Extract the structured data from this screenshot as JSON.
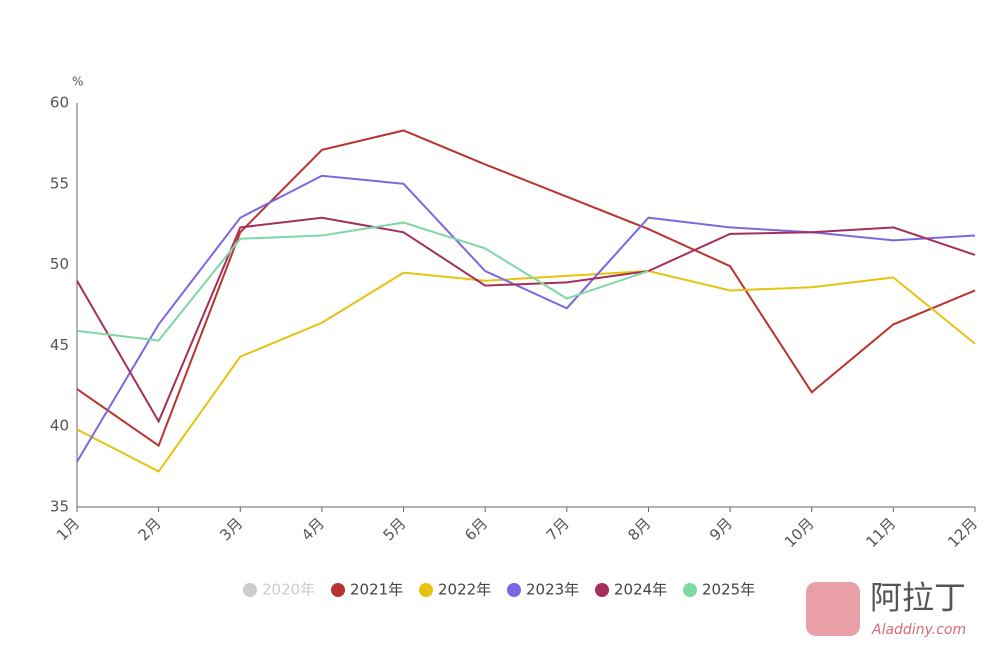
{
  "chart_data": {
    "type": "line",
    "y_unit": "%",
    "categories": [
      "1月",
      "2月",
      "3月",
      "4月",
      "5月",
      "6月",
      "7月",
      "8月",
      "9月",
      "10月",
      "11月",
      "12月"
    ],
    "ylim": [
      35,
      60
    ],
    "yticks": [
      35,
      40,
      45,
      50,
      55,
      60
    ],
    "grid": false,
    "legend": "bottom",
    "series": [
      {
        "name": "2020年",
        "color": "#cccccc",
        "hidden": true,
        "values": [
          null,
          null,
          null,
          null,
          null,
          null,
          null,
          null,
          null,
          null,
          null,
          null
        ]
      },
      {
        "name": "2021年",
        "color": "#b8352f",
        "values": [
          42.3,
          38.8,
          52.0,
          57.1,
          58.3,
          56.2,
          54.2,
          52.2,
          49.9,
          42.1,
          46.3,
          48.4
        ]
      },
      {
        "name": "2022年",
        "color": "#e6c30e",
        "values": [
          39.8,
          37.2,
          44.3,
          46.4,
          49.5,
          49.0,
          49.3,
          49.6,
          48.4,
          48.6,
          49.2,
          45.1
        ]
      },
      {
        "name": "2023年",
        "color": "#7b68e0",
        "values": [
          37.8,
          46.3,
          52.9,
          55.5,
          55.0,
          49.6,
          47.3,
          52.9,
          52.3,
          52.0,
          51.5,
          51.8
        ]
      },
      {
        "name": "2024年",
        "color": "#a52f5c",
        "values": [
          49.0,
          40.3,
          52.3,
          52.9,
          52.0,
          48.7,
          48.9,
          49.6,
          51.9,
          52.0,
          52.3,
          50.6
        ]
      },
      {
        "name": "2025年",
        "color": "#7dd8a5",
        "values": [
          45.9,
          45.3,
          51.6,
          51.8,
          52.6,
          51.0,
          47.9,
          49.6,
          null,
          null,
          null,
          null
        ]
      }
    ]
  },
  "logo": {
    "name": "阿拉丁",
    "site": "Aladdiny.com"
  }
}
